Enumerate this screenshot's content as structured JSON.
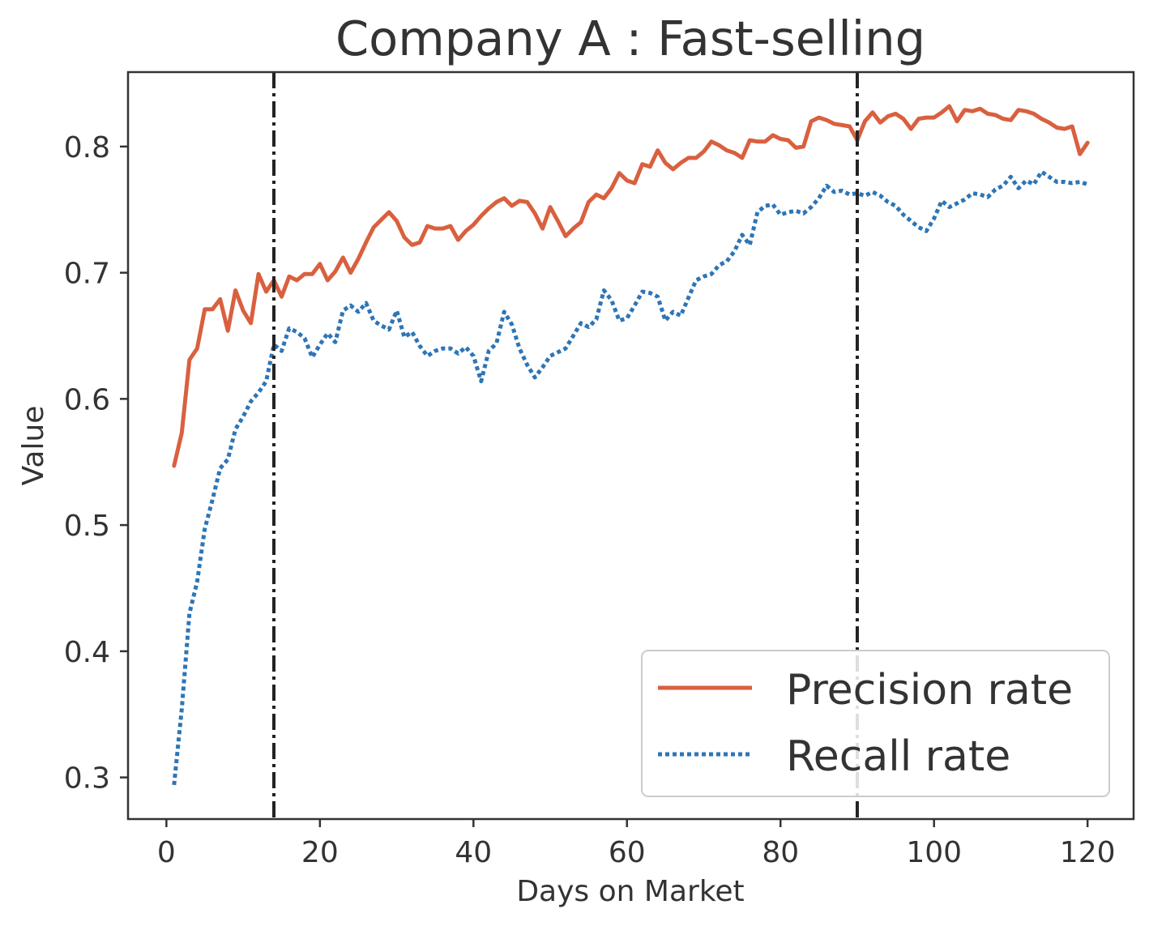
{
  "chart_data": {
    "type": "line",
    "title": "Company A : Fast-selling",
    "xlabel": "Days on Market",
    "ylabel": "Value",
    "xlim": [
      -5,
      126
    ],
    "ylim": [
      0.267,
      0.859
    ],
    "xticks": [
      0,
      20,
      40,
      60,
      80,
      100,
      120
    ],
    "yticks": [
      0.3,
      0.4,
      0.5,
      0.6,
      0.7,
      0.8
    ],
    "grid": false,
    "legend_position": "lower right",
    "vlines": [
      14,
      90
    ],
    "series": [
      {
        "name": "Precision rate",
        "color": "#d9603f",
        "style": "solid",
        "x": [
          1,
          2,
          3,
          4,
          5,
          6,
          7,
          8,
          9,
          10,
          11,
          12,
          13,
          14,
          15,
          16,
          17,
          18,
          19,
          20,
          21,
          22,
          23,
          24,
          25,
          26,
          27,
          28,
          29,
          30,
          31,
          32,
          33,
          34,
          35,
          36,
          37,
          38,
          39,
          40,
          41,
          42,
          43,
          44,
          45,
          46,
          47,
          48,
          49,
          50,
          51,
          52,
          53,
          54,
          55,
          56,
          57,
          58,
          59,
          60,
          61,
          62,
          63,
          64,
          65,
          66,
          67,
          68,
          69,
          70,
          71,
          72,
          73,
          74,
          75,
          76,
          77,
          78,
          79,
          80,
          81,
          82,
          83,
          84,
          85,
          86,
          87,
          88,
          89,
          90,
          91,
          92,
          93,
          94,
          95,
          96,
          97,
          98,
          99,
          100,
          101,
          102,
          103,
          104,
          105,
          106,
          107,
          108,
          109,
          110,
          111,
          112,
          113,
          114,
          115,
          116,
          117,
          118,
          119,
          120
        ],
        "values": [
          0.547,
          0.573,
          0.631,
          0.64,
          0.671,
          0.671,
          0.679,
          0.654,
          0.686,
          0.67,
          0.66,
          0.699,
          0.685,
          0.694,
          0.681,
          0.697,
          0.694,
          0.699,
          0.699,
          0.707,
          0.694,
          0.701,
          0.712,
          0.7,
          0.711,
          0.724,
          0.736,
          0.742,
          0.748,
          0.741,
          0.728,
          0.722,
          0.724,
          0.737,
          0.735,
          0.735,
          0.737,
          0.726,
          0.733,
          0.738,
          0.745,
          0.751,
          0.756,
          0.759,
          0.753,
          0.757,
          0.756,
          0.747,
          0.735,
          0.752,
          0.741,
          0.729,
          0.735,
          0.74,
          0.756,
          0.762,
          0.759,
          0.767,
          0.779,
          0.773,
          0.771,
          0.786,
          0.784,
          0.797,
          0.787,
          0.782,
          0.787,
          0.791,
          0.791,
          0.796,
          0.804,
          0.801,
          0.797,
          0.795,
          0.791,
          0.805,
          0.804,
          0.804,
          0.809,
          0.806,
          0.805,
          0.799,
          0.8,
          0.82,
          0.823,
          0.821,
          0.818,
          0.817,
          0.816,
          0.805,
          0.82,
          0.827,
          0.819,
          0.824,
          0.826,
          0.822,
          0.814,
          0.822,
          0.823,
          0.823,
          0.827,
          0.832,
          0.82,
          0.829,
          0.828,
          0.83,
          0.826,
          0.825,
          0.822,
          0.821,
          0.829,
          0.828,
          0.826,
          0.822,
          0.819,
          0.815,
          0.814,
          0.816,
          0.794,
          0.803
        ]
      },
      {
        "name": "Recall rate",
        "color": "#2e75b6",
        "style": "dotted",
        "x": [
          1,
          2,
          3,
          4,
          5,
          6,
          7,
          8,
          9,
          10,
          11,
          12,
          13,
          14,
          15,
          16,
          17,
          18,
          19,
          20,
          21,
          22,
          23,
          24,
          25,
          26,
          27,
          28,
          29,
          30,
          31,
          32,
          33,
          34,
          35,
          36,
          37,
          38,
          39,
          40,
          41,
          42,
          43,
          44,
          45,
          46,
          47,
          48,
          49,
          50,
          51,
          52,
          53,
          54,
          55,
          56,
          57,
          58,
          59,
          60,
          61,
          62,
          63,
          64,
          65,
          66,
          67,
          68,
          69,
          70,
          71,
          72,
          73,
          74,
          75,
          76,
          77,
          78,
          79,
          80,
          81,
          82,
          83,
          84,
          85,
          86,
          87,
          88,
          89,
          90,
          91,
          92,
          93,
          94,
          95,
          96,
          97,
          98,
          99,
          100,
          101,
          102,
          103,
          104,
          105,
          106,
          107,
          108,
          109,
          110,
          111,
          112,
          113,
          114,
          115,
          116,
          117,
          118,
          119,
          120
        ],
        "values": [
          0.294,
          0.354,
          0.43,
          0.455,
          0.497,
          0.52,
          0.545,
          0.552,
          0.576,
          0.586,
          0.598,
          0.605,
          0.614,
          0.643,
          0.638,
          0.656,
          0.653,
          0.648,
          0.633,
          0.643,
          0.652,
          0.645,
          0.67,
          0.674,
          0.669,
          0.676,
          0.662,
          0.658,
          0.655,
          0.67,
          0.649,
          0.653,
          0.642,
          0.634,
          0.638,
          0.64,
          0.64,
          0.636,
          0.641,
          0.634,
          0.614,
          0.638,
          0.644,
          0.669,
          0.659,
          0.64,
          0.627,
          0.617,
          0.625,
          0.634,
          0.637,
          0.64,
          0.65,
          0.66,
          0.657,
          0.663,
          0.686,
          0.678,
          0.662,
          0.664,
          0.674,
          0.685,
          0.684,
          0.681,
          0.662,
          0.669,
          0.666,
          0.68,
          0.694,
          0.697,
          0.699,
          0.706,
          0.709,
          0.717,
          0.73,
          0.722,
          0.748,
          0.753,
          0.754,
          0.746,
          0.748,
          0.749,
          0.747,
          0.752,
          0.759,
          0.769,
          0.764,
          0.765,
          0.762,
          0.763,
          0.761,
          0.764,
          0.761,
          0.756,
          0.753,
          0.746,
          0.741,
          0.736,
          0.733,
          0.743,
          0.757,
          0.752,
          0.755,
          0.758,
          0.763,
          0.762,
          0.76,
          0.766,
          0.769,
          0.776,
          0.767,
          0.773,
          0.77,
          0.78,
          0.776,
          0.772,
          0.772,
          0.771,
          0.772,
          0.77
        ]
      }
    ]
  }
}
